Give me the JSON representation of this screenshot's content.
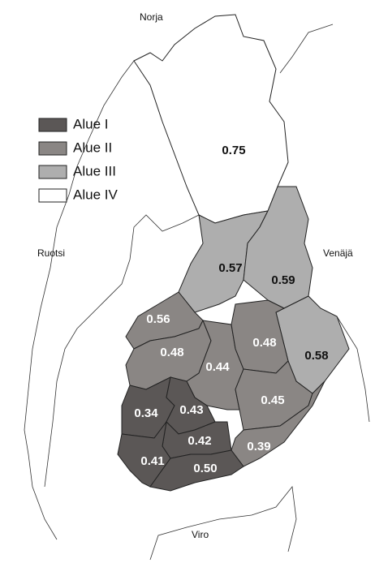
{
  "countries": [
    "Norja",
    "Ruotsi",
    "Venäjä",
    "Viro"
  ],
  "legend": [
    {
      "label": "Alue I",
      "color": "#5b5756"
    },
    {
      "label": "Alue II",
      "color": "#8a8684"
    },
    {
      "label": "Alue III",
      "color": "#aeaeae"
    },
    {
      "label": "Alue IV",
      "color": "#ffffff"
    }
  ],
  "regions": [
    "0.75",
    "0.57",
    "0.59",
    "0.56",
    "0.48",
    "0.48",
    "0.58",
    "0.44",
    "0.43",
    "0.45",
    "0.34",
    "0.42",
    "0.39",
    "0.41",
    "0.50"
  ]
}
